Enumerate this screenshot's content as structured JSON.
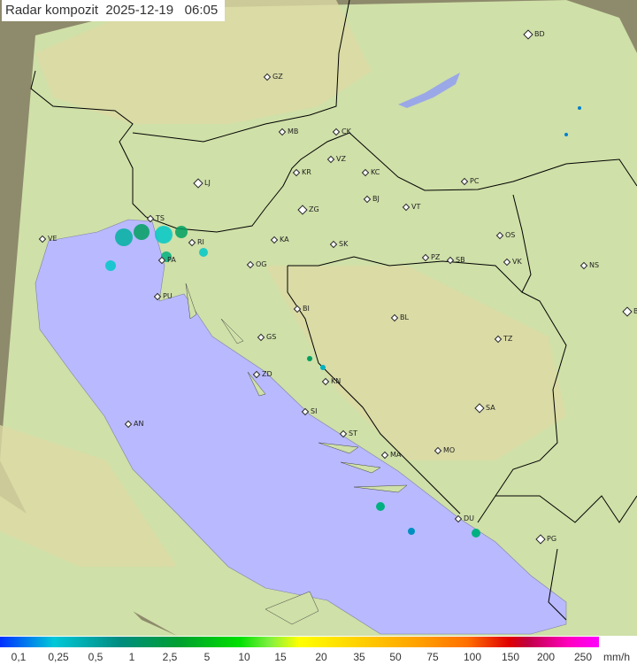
{
  "header": {
    "title": "Radar kompozit",
    "date": "2025-12-19",
    "time": "06:05"
  },
  "colors": {
    "sea": "#b9b9ff",
    "land": "#cfe0a8",
    "outside_radar": "#8c8c70",
    "border": "#000000"
  },
  "cities": [
    "GZ",
    "MB",
    "CK",
    "VZ",
    "KR",
    "KC",
    "LJ",
    "PC",
    "BJ",
    "ZG",
    "VT",
    "TS",
    "VE",
    "RI",
    "KA",
    "SK",
    "OS",
    "NS",
    "PA",
    "PZ",
    "SB",
    "VK",
    "OG",
    "PU",
    "BI",
    "BL",
    "BG",
    "GS",
    "TZ",
    "ZD",
    "KN",
    "SA",
    "SI",
    "AN",
    "ST",
    "MA",
    "MO",
    "DU",
    "PG",
    "BD"
  ],
  "legend": {
    "labels": [
      "0,1",
      "0,25",
      "0,5",
      "1",
      "2,5",
      "5",
      "10",
      "15",
      "20",
      "35",
      "50",
      "75",
      "100",
      "150",
      "200",
      "250"
    ],
    "unit": "mm/h"
  }
}
